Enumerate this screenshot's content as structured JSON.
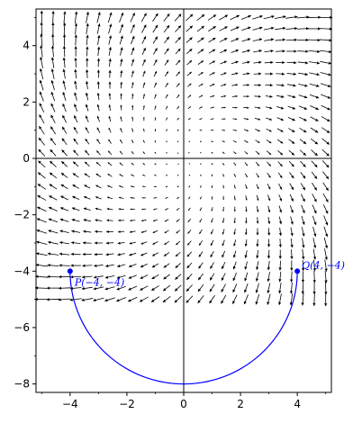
{
  "chart_data": {
    "type": "vector_field",
    "xlim": [
      -5.2,
      5.2
    ],
    "ylim": [
      -8.3,
      5.3
    ],
    "xticks": [
      -4,
      -2,
      0,
      2,
      4
    ],
    "yticks": [
      -8,
      -6,
      -4,
      -2,
      0,
      2,
      4
    ],
    "xtick_labels": [
      "−4",
      "−2",
      "0",
      "2",
      "4"
    ],
    "ytick_labels": [
      "−8",
      "−6",
      "−4",
      "−2",
      "0",
      "2",
      "4"
    ],
    "field": {
      "x_range": [
        -5,
        5
      ],
      "y_range": [
        -5,
        5
      ],
      "step": 0.4,
      "color": "#000000"
    },
    "curve": {
      "color": "#0000ff",
      "center": [
        0,
        -4
      ],
      "radius": 4,
      "from": [
        -4,
        -4
      ],
      "to": [
        4,
        -4
      ]
    },
    "points": [
      {
        "label": "P(−4, −4)",
        "x": -4,
        "y": -4
      },
      {
        "label": "Q(4, −4)",
        "x": 4,
        "y": -4
      }
    ],
    "grid": false,
    "axes_through_origin": true
  }
}
